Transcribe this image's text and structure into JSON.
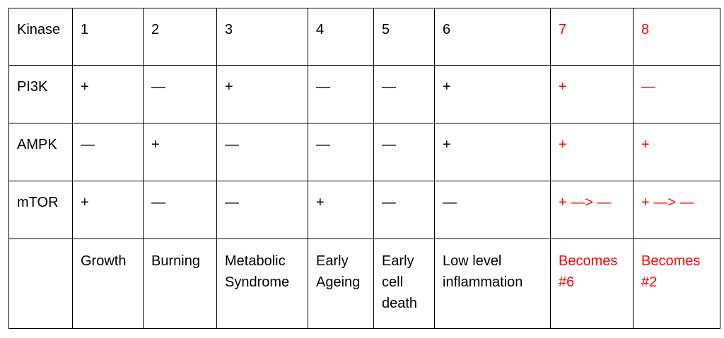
{
  "table": {
    "header": [
      "Kinase",
      "1",
      "2",
      "3",
      "4",
      "5",
      "6",
      "7",
      "8"
    ],
    "rows": [
      {
        "kinase": "PI3K",
        "cells": [
          "+",
          "—",
          "+",
          "—",
          "—",
          "+",
          "+",
          "—"
        ]
      },
      {
        "kinase": "AMPK",
        "cells": [
          "—",
          "+",
          "—",
          "—",
          "—",
          "+",
          "+",
          "+"
        ]
      },
      {
        "kinase": "mTOR",
        "cells": [
          "+",
          "—",
          "—",
          "+",
          "—",
          "—",
          "+ —> —",
          "+ —> —"
        ]
      }
    ],
    "outcomes": [
      "",
      "Growth",
      "Burning",
      "Metabolic Syndrome",
      "Early Ageing",
      "Early cell death",
      "Low level inflammation",
      "Becomes #6",
      "Becomes #2"
    ]
  },
  "colors": {
    "text": "#000000",
    "highlight": "#ff0000",
    "border": "#000000"
  }
}
